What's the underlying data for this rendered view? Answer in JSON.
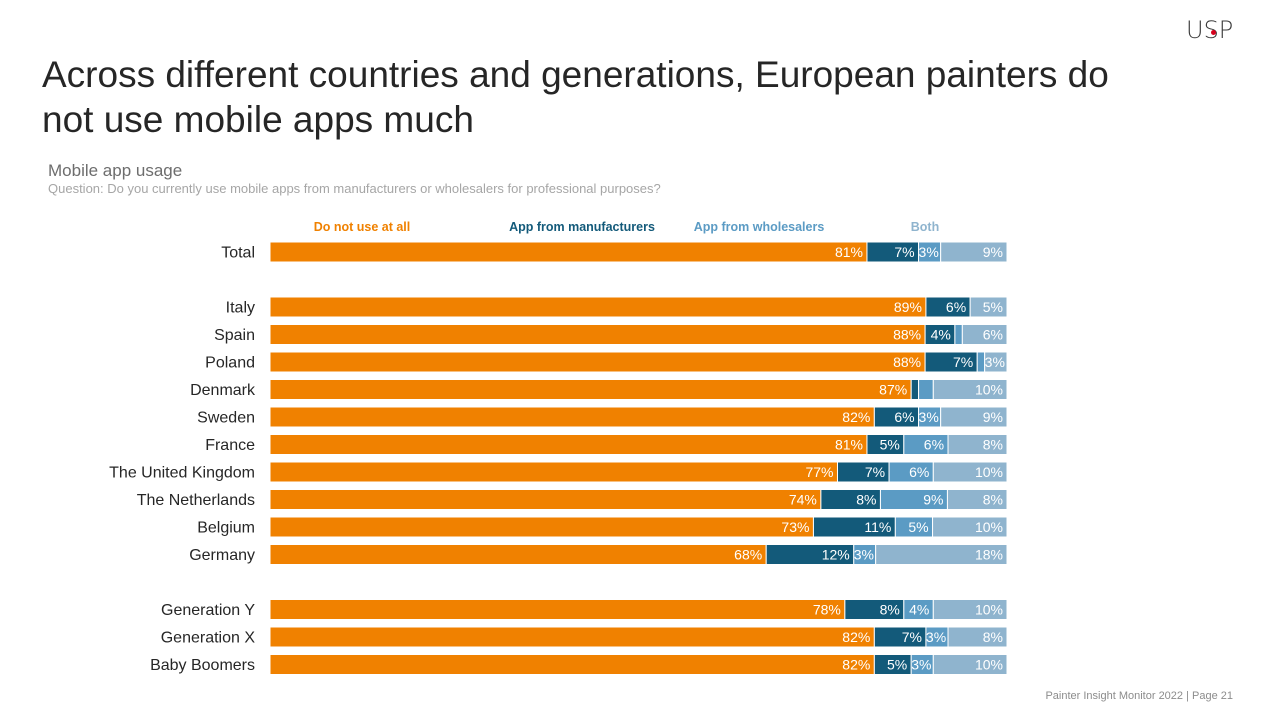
{
  "brand": {
    "logo_text": "USP"
  },
  "page": {
    "title": "Across different countries and generations, European painters do not use mobile apps much",
    "chart_title": "Mobile app usage",
    "question": "Question: Do you currently use mobile apps from manufacturers or wholesalers for professional purposes?",
    "footer": "Painter Insight Monitor 2022 | Page 21"
  },
  "colors": {
    "do_not_use": "#F08100",
    "manufacturers": "#135A7A",
    "wholesalers": "#5B9BC4",
    "both": "#8FB4CE"
  },
  "chart_data": {
    "type": "bar",
    "orientation": "horizontal",
    "stacked": true,
    "percent_stacked": true,
    "xlim": [
      0,
      100
    ],
    "grid": false,
    "legend_position": "top",
    "categories": [
      "Total",
      "Italy",
      "Spain",
      "Poland",
      "Denmark",
      "Sweden",
      "France",
      "The United Kingdom",
      "The Netherlands",
      "Belgium",
      "Germany",
      "Generation Y",
      "Generation X",
      "Baby Boomers"
    ],
    "groups": [
      [
        0
      ],
      [
        1,
        2,
        3,
        4,
        5,
        6,
        7,
        8,
        9,
        10
      ],
      [
        11,
        12,
        13
      ]
    ],
    "series": [
      {
        "name": "Do not use at all",
        "color": "#F08100",
        "label_color": "#F08100",
        "values": [
          81,
          89,
          88,
          88,
          87,
          82,
          81,
          77,
          74,
          73,
          68,
          78,
          82,
          82
        ],
        "labels": [
          "81%",
          "89%",
          "88%",
          "88%",
          "87%",
          "82%",
          "81%",
          "77%",
          "74%",
          "73%",
          "68%",
          "78%",
          "82%",
          "82%"
        ]
      },
      {
        "name": "App from manufacturers",
        "color": "#135A7A",
        "label_color": "#135A7A",
        "values": [
          7,
          6,
          4,
          7,
          1,
          6,
          5,
          7,
          8,
          11,
          12,
          8,
          7,
          5
        ],
        "labels": [
          "7%",
          "6%",
          "4%",
          "7%",
          "",
          "6%",
          "5%",
          "7%",
          "8%",
          "11%",
          "12%",
          "8%",
          "7%",
          "5%"
        ]
      },
      {
        "name": "App from wholesalers",
        "color": "#5B9BC4",
        "label_color": "#5B9BC4",
        "values": [
          3,
          0,
          1,
          1,
          2,
          3,
          6,
          6,
          9,
          5,
          3,
          4,
          3,
          3
        ],
        "labels": [
          "3%",
          "",
          "",
          "",
          "",
          "3%",
          "6%",
          "6%",
          "9%",
          "5%",
          "3%",
          "4%",
          "3%",
          "3%"
        ]
      },
      {
        "name": "Both",
        "color": "#8FB4CE",
        "label_color": "#8FB4CE",
        "values": [
          9,
          5,
          6,
          3,
          10,
          9,
          8,
          10,
          8,
          10,
          18,
          10,
          8,
          10
        ],
        "labels": [
          "9%",
          "5%",
          "6%",
          "3%",
          "10%",
          "9%",
          "8%",
          "10%",
          "8%",
          "10%",
          "18%",
          "10%",
          "8%",
          "10%"
        ]
      }
    ]
  }
}
